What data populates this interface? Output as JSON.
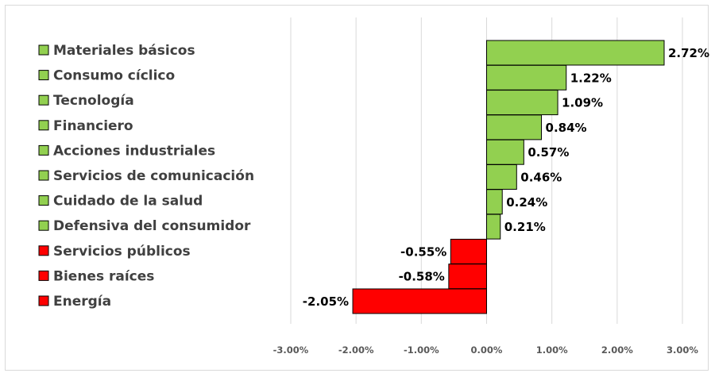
{
  "chart_data": {
    "type": "bar",
    "orientation": "horizontal",
    "categories": [
      "Materiales básicos",
      "Consumo cíclico",
      "Tecnología",
      "Financiero",
      "Acciones industriales",
      "Servicios de comunicación",
      "Cuidado de la salud",
      "Defensiva del consumidor",
      "Servicios públicos",
      "Bienes raíces",
      "Energía"
    ],
    "values": [
      2.72,
      1.22,
      1.09,
      0.84,
      0.57,
      0.46,
      0.24,
      0.21,
      -0.55,
      -0.58,
      -2.05
    ],
    "value_labels": [
      "2.72%",
      "1.22%",
      "1.09%",
      "0.84%",
      "0.57%",
      "0.46%",
      "0.24%",
      "0.21%",
      "-0.55%",
      "-0.58%",
      "-2.05%"
    ],
    "xlim": [
      -3,
      3
    ],
    "x_ticks": [
      -3,
      -2,
      -1,
      0,
      1,
      2,
      3
    ],
    "x_tick_labels": [
      "-3.00%",
      "-2.00%",
      "-1.00%",
      "0.00%",
      "1.00%",
      "2.00%",
      "3.00%"
    ],
    "title": "",
    "xlabel": "",
    "ylabel": "",
    "grid": "vertical",
    "legend": "left",
    "colors": {
      "positive": "#92d050",
      "negative": "#ff0000",
      "border": "#000000",
      "grid": "#d9d9d9"
    }
  }
}
